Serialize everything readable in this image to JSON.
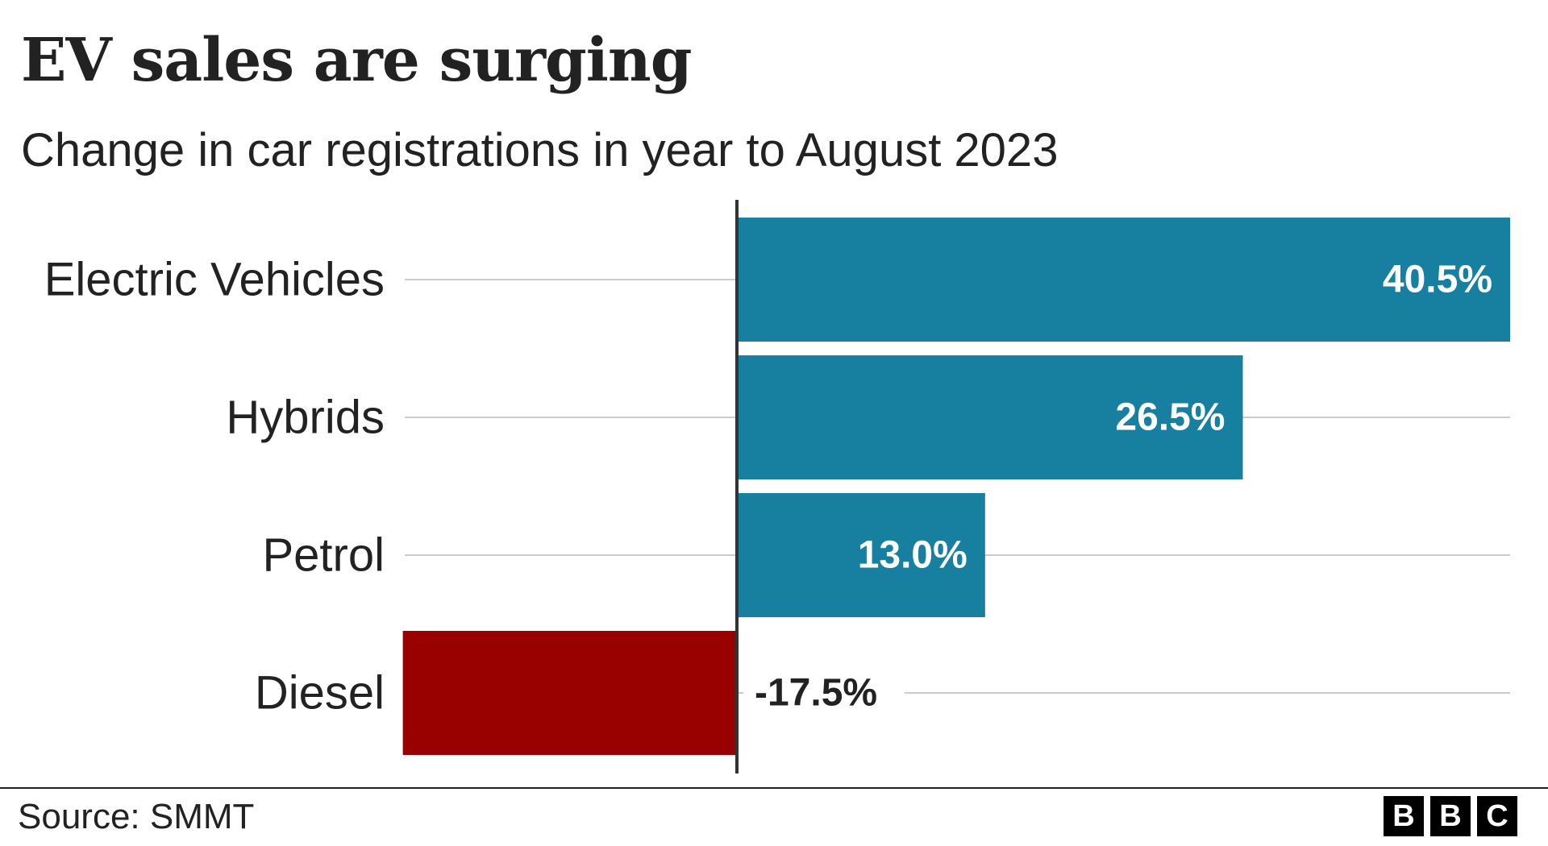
{
  "chart_data": {
    "type": "bar",
    "orientation": "horizontal",
    "title": "EV sales are surging",
    "subtitle": "Change in car registrations in year to August 2023",
    "categories": [
      "Electric Vehicles",
      "Hybrids",
      "Petrol",
      "Diesel"
    ],
    "values": [
      40.5,
      26.5,
      13.0,
      -17.5
    ],
    "value_labels": [
      "40.5%",
      "26.5%",
      "13.0%",
      "-17.5%"
    ],
    "xlim": [
      -17.5,
      40.5
    ],
    "grid": true,
    "legend": "none",
    "colors": {
      "positive": "#1780a1",
      "negative": "#990000",
      "axis": "#333333",
      "grid": "#cccccc"
    }
  },
  "footer": {
    "source": "Source: SMMT"
  },
  "logo": {
    "letters": [
      "B",
      "B",
      "C"
    ]
  }
}
